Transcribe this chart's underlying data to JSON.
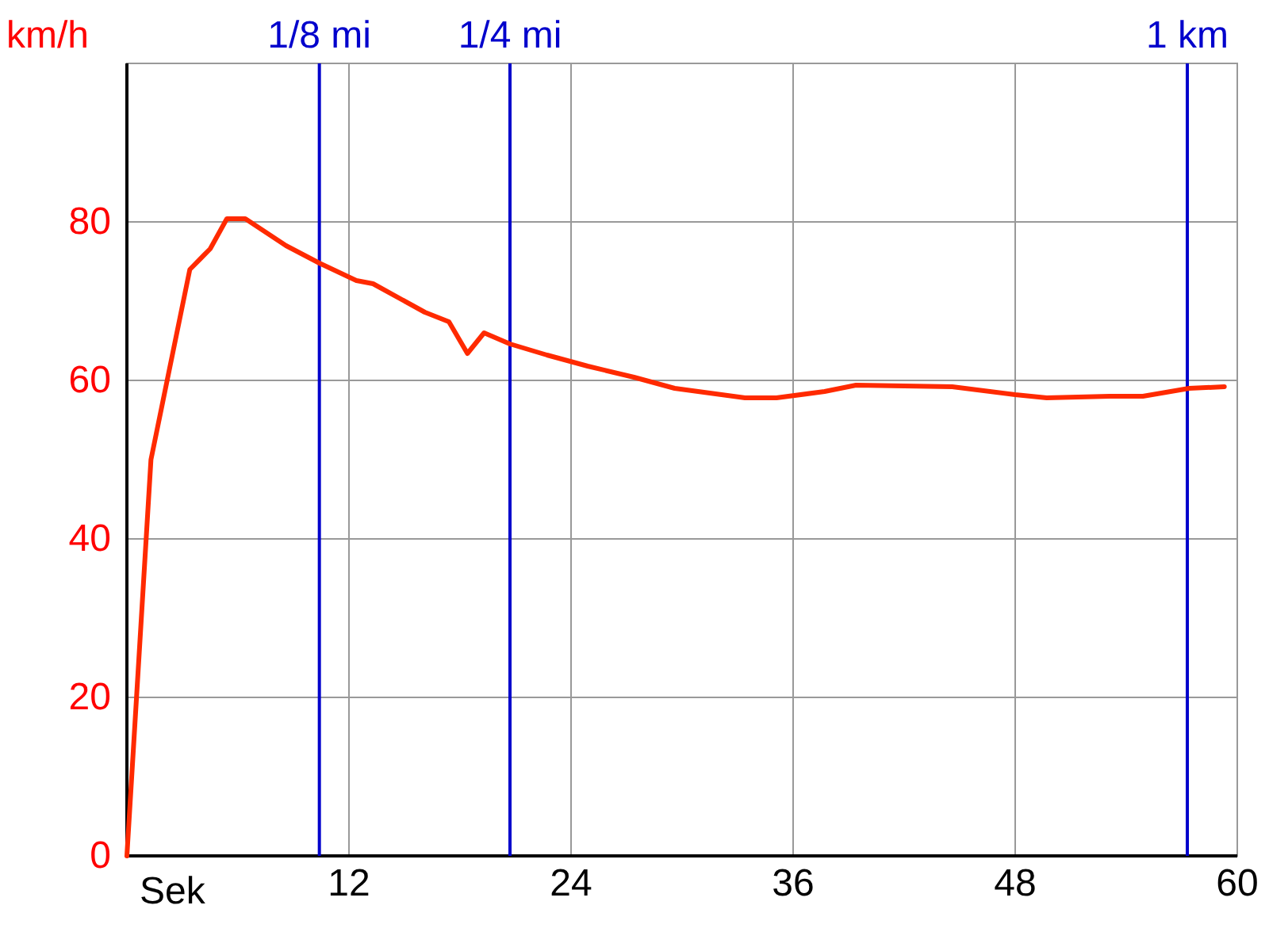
{
  "chart_data": {
    "type": "line",
    "xlabel": "Sek",
    "ylabel": "km/h",
    "x": [
      0,
      1.3,
      3.4,
      4.5,
      5.4,
      6.4,
      8.6,
      10.4,
      12.4,
      13.3,
      16.1,
      17.4,
      18.4,
      19.3,
      20.7,
      22.7,
      24.9,
      27.4,
      29.6,
      33.4,
      35.1,
      37.7,
      39.4,
      44.6,
      48,
      49.7,
      53.1,
      54.9,
      57.4,
      59.3
    ],
    "series": [
      {
        "color": "#ff2a00",
        "values": [
          0,
          50,
          74,
          76.6,
          80.4,
          80.4,
          77,
          74.8,
          72.6,
          72.2,
          68.6,
          67.4,
          63.4,
          66,
          64.6,
          63.2,
          61.8,
          60.4,
          59,
          57.8,
          57.8,
          58.6,
          59.4,
          59.2,
          58.2,
          57.8,
          58,
          58,
          59,
          59.2
        ]
      }
    ],
    "xlim": [
      0,
      60
    ],
    "xticks": [
      12,
      24,
      36,
      48,
      60
    ],
    "ylim": [
      0,
      100
    ],
    "yticks": [
      0,
      20,
      40,
      60,
      80
    ],
    "grid": true,
    "ref_lines": [
      {
        "axis": "x",
        "value": 10.4,
        "label": "1/8 mi",
        "color": "#0000cc"
      },
      {
        "axis": "x",
        "value": 20.7,
        "label": "1/4 mi",
        "color": "#0000cc"
      },
      {
        "axis": "x",
        "value": 57.3,
        "label": "1 km",
        "color": "#0000cc"
      }
    ]
  }
}
